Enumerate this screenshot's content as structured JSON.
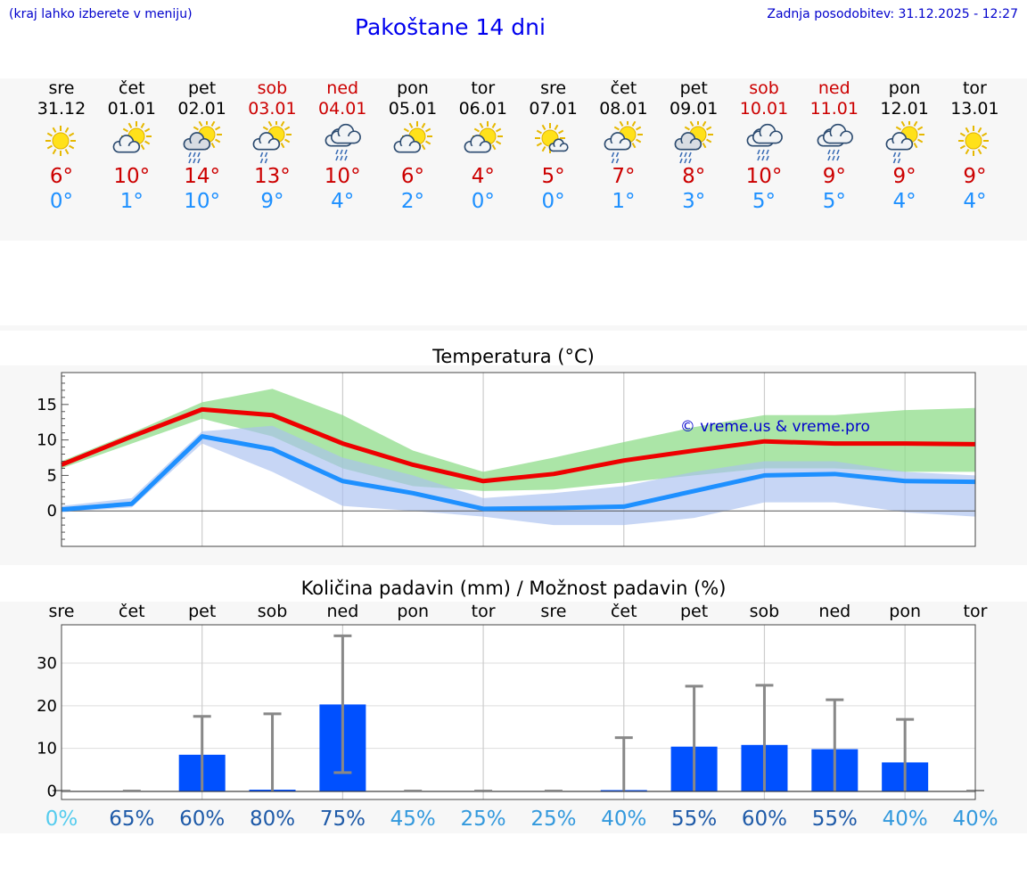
{
  "header": {
    "hint": "(kraj lahko izberete v meniju)",
    "title": "Pakoštane 14 dni",
    "updated": "Zadnja posodobitev: 31.12.2025 - 12:27"
  },
  "colors": {
    "max": "#ee0000",
    "min": "#1e90ff",
    "maxBand": "#8fdc8a",
    "minBand": "#a9c0f0",
    "bar": "#0050ff",
    "errbar": "#888888",
    "weekend": "#cc0000",
    "watermark": "#0000cc"
  },
  "days": [
    {
      "name": "sre",
      "date": "31.12",
      "max": "6°",
      "min": "0°",
      "icon": "sunny-icon",
      "weekend": false
    },
    {
      "name": "čet",
      "date": "01.01",
      "max": "10°",
      "min": "1°",
      "icon": "partly-cloudy-icon",
      "weekend": false
    },
    {
      "name": "pet",
      "date": "02.01",
      "max": "14°",
      "min": "10°",
      "icon": "sun-cloud-rain-icon",
      "weekend": false
    },
    {
      "name": "sob",
      "date": "03.01",
      "max": "13°",
      "min": "9°",
      "icon": "sun-cloud-light-rain-icon",
      "weekend": true
    },
    {
      "name": "ned",
      "date": "04.01",
      "max": "10°",
      "min": "4°",
      "icon": "cloud-rain-icon",
      "weekend": true
    },
    {
      "name": "pon",
      "date": "05.01",
      "max": "6°",
      "min": "2°",
      "icon": "partly-cloudy-icon",
      "weekend": false
    },
    {
      "name": "tor",
      "date": "06.01",
      "max": "4°",
      "min": "0°",
      "icon": "partly-cloudy-icon",
      "weekend": false
    },
    {
      "name": "sre",
      "date": "07.01",
      "max": "5°",
      "min": "0°",
      "icon": "mostly-sunny-icon",
      "weekend": false
    },
    {
      "name": "čet",
      "date": "08.01",
      "max": "7°",
      "min": "1°",
      "icon": "sun-cloud-light-rain-icon",
      "weekend": false
    },
    {
      "name": "pet",
      "date": "09.01",
      "max": "8°",
      "min": "3°",
      "icon": "sun-cloud-rain-icon",
      "weekend": false
    },
    {
      "name": "sob",
      "date": "10.01",
      "max": "10°",
      "min": "5°",
      "icon": "cloud-rain-icon",
      "weekend": true
    },
    {
      "name": "ned",
      "date": "11.01",
      "max": "9°",
      "min": "5°",
      "icon": "cloud-rain-icon",
      "weekend": true
    },
    {
      "name": "pon",
      "date": "12.01",
      "max": "9°",
      "min": "4°",
      "icon": "sun-cloud-light-rain-icon",
      "weekend": false
    },
    {
      "name": "tor",
      "date": "13.01",
      "max": "9°",
      "min": "4°",
      "icon": "sunny-icon",
      "weekend": false
    }
  ],
  "chart_data": [
    {
      "type": "line",
      "title": "Temperatura (°C)",
      "watermark": "© vreme.us & vreme.pro",
      "ylim": [
        -5,
        19.5
      ],
      "yticks": [
        0,
        5,
        10,
        15
      ],
      "x": [
        0,
        1,
        2,
        3,
        4,
        5,
        6,
        7,
        8,
        9,
        10,
        11,
        12,
        13
      ],
      "series": [
        {
          "name": "max",
          "values": [
            6.5,
            10.5,
            14.3,
            13.5,
            9.5,
            6.5,
            4.2,
            5.2,
            7.1,
            8.5,
            9.8,
            9.5,
            9.5,
            9.4
          ]
        },
        {
          "name": "min",
          "values": [
            0.2,
            1.0,
            10.5,
            8.7,
            4.2,
            2.5,
            0.3,
            0.4,
            0.6,
            2.8,
            5.0,
            5.2,
            4.2,
            4.1
          ]
        }
      ],
      "bands": [
        {
          "name": "max-range",
          "low": [
            6.0,
            9.5,
            13.0,
            10.5,
            6.0,
            3.5,
            2.8,
            3.0,
            4.0,
            5.0,
            6.0,
            6.0,
            5.5,
            5.5
          ],
          "high": [
            7.0,
            11.0,
            15.3,
            17.2,
            13.5,
            8.5,
            5.5,
            7.5,
            9.7,
            11.8,
            13.5,
            13.5,
            14.2,
            14.5
          ]
        },
        {
          "name": "min-range",
          "low": [
            -0.2,
            0.5,
            9.5,
            5.5,
            0.7,
            0.0,
            -0.8,
            -2.0,
            -2.0,
            -1.0,
            1.2,
            1.2,
            -0.2,
            -0.8
          ],
          "high": [
            0.7,
            1.8,
            11.2,
            12.0,
            7.5,
            5.0,
            1.8,
            2.5,
            3.5,
            5.5,
            7.0,
            7.0,
            5.5,
            5.0
          ]
        }
      ]
    },
    {
      "type": "bar",
      "title": "Količina padavin (mm) / Možnost padavin (%)",
      "categories": [
        "sre",
        "čet",
        "pet",
        "sob",
        "ned",
        "pon",
        "tor",
        "sre",
        "čet",
        "pet",
        "sob",
        "ned",
        "pon",
        "tor"
      ],
      "ylim": [
        -2,
        39
      ],
      "yticks": [
        0,
        10,
        20,
        30
      ],
      "values": [
        0,
        0,
        8.5,
        0.3,
        20.3,
        0,
        0,
        0,
        0.2,
        10.4,
        10.8,
        9.8,
        6.7,
        0
      ],
      "error_low": [
        0,
        0,
        0,
        0,
        4.3,
        0,
        0,
        0,
        0,
        0,
        0,
        0,
        0,
        0
      ],
      "error_high": [
        0,
        0,
        17.5,
        18.1,
        36.4,
        0,
        0,
        0,
        12.5,
        24.6,
        24.8,
        21.4,
        16.8,
        0
      ],
      "probability": [
        "0%",
        "65%",
        "60%",
        "80%",
        "75%",
        "45%",
        "25%",
        "25%",
        "40%",
        "55%",
        "60%",
        "55%",
        "40%",
        "40%"
      ],
      "probability_colors": [
        "#55ccee",
        "#1e5aa8",
        "#1e5aa8",
        "#1e5aa8",
        "#1e5aa8",
        "#3399dd",
        "#3399dd",
        "#3399dd",
        "#3399dd",
        "#1e5aa8",
        "#1e5aa8",
        "#1e5aa8",
        "#3399dd",
        "#3399dd"
      ]
    }
  ]
}
